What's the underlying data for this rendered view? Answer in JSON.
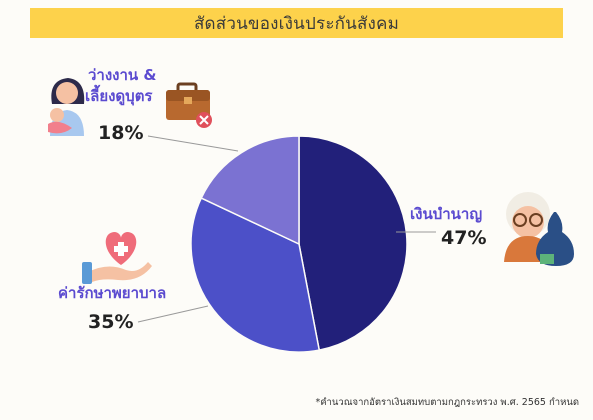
{
  "header": {
    "title": "สัดส่วนของเงินประกันสังคม"
  },
  "colors": {
    "title_bg": "#fdd24b",
    "slice_pension": "#22207a",
    "slice_medical": "#4c50c8",
    "slice_unemployment": "#7b72d2",
    "label_text": "#5b4bd0"
  },
  "icons": [
    "mother-baby-icon",
    "briefcase-x-icon",
    "heart-hand-icon",
    "elderly-money-bag-icon"
  ],
  "chart_data": {
    "type": "pie",
    "title": "สัดส่วนของเงินประกันสังคม",
    "slices": [
      {
        "label": "เงินบำนาญ",
        "value": 47,
        "display": "47%"
      },
      {
        "label": "ค่ารักษาพยาบาล",
        "value": 35,
        "display": "35%"
      },
      {
        "label": "ว่างงาน & เลี้ยงดูบุตร",
        "value": 18,
        "display": "18%"
      }
    ]
  },
  "footnote": "*คำนวณจากอัตราเงินสมทบตามกฎกระทรวง พ.ศ. 2565 กำหนด"
}
